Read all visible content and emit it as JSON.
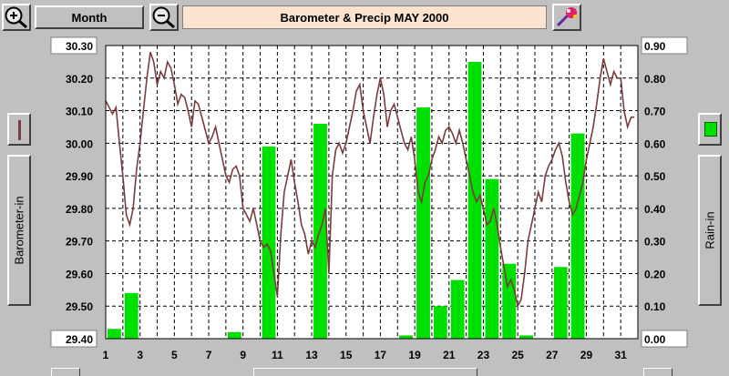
{
  "toolbar": {
    "zoom_in_label": "+",
    "zoom_out_label": "−",
    "period_button": "Month",
    "title": "Barometer & Precip  MAY 2000"
  },
  "legend": {
    "left_axis_label": "Barometer-in",
    "right_axis_label": "Rain-in",
    "barometer_color": "#7a3c3c",
    "rain_color": "#00e000"
  },
  "chart_data": {
    "type": "bar+line",
    "title": "Barometer & Precip  MAY 2000",
    "x_ticks": [
      "1",
      "3",
      "5",
      "7",
      "9",
      "11",
      "13",
      "15",
      "17",
      "19",
      "21",
      "23",
      "25",
      "27",
      "29",
      "31"
    ],
    "xlim": [
      1,
      32
    ],
    "left_axis": {
      "label": "Barometer-in",
      "ylim": [
        29.4,
        30.3
      ],
      "ticks": [
        "29.40",
        "29.50",
        "29.60",
        "29.70",
        "29.80",
        "29.90",
        "30.00",
        "30.10",
        "30.20",
        "30.30"
      ]
    },
    "right_axis": {
      "label": "Rain-in",
      "ylim": [
        0.0,
        0.9
      ],
      "ticks": [
        "0.00",
        "0.10",
        "0.20",
        "0.30",
        "0.40",
        "0.50",
        "0.60",
        "0.70",
        "0.80",
        "0.90"
      ]
    },
    "series": [
      {
        "name": "Barometer-in",
        "type": "line",
        "axis": "left",
        "color": "#7a3c3c",
        "points": [
          [
            1.0,
            30.13
          ],
          [
            1.2,
            30.11
          ],
          [
            1.4,
            30.09
          ],
          [
            1.6,
            30.11
          ],
          [
            1.8,
            30.0
          ],
          [
            2.0,
            29.9
          ],
          [
            2.2,
            29.78
          ],
          [
            2.4,
            29.75
          ],
          [
            2.6,
            29.8
          ],
          [
            2.8,
            29.92
          ],
          [
            3.0,
            30.0
          ],
          [
            3.2,
            30.1
          ],
          [
            3.4,
            30.2
          ],
          [
            3.6,
            30.28
          ],
          [
            3.8,
            30.25
          ],
          [
            4.0,
            30.18
          ],
          [
            4.2,
            30.22
          ],
          [
            4.4,
            30.2
          ],
          [
            4.6,
            30.25
          ],
          [
            4.8,
            30.23
          ],
          [
            5.0,
            30.18
          ],
          [
            5.2,
            30.12
          ],
          [
            5.4,
            30.15
          ],
          [
            5.6,
            30.14
          ],
          [
            5.8,
            30.1
          ],
          [
            6.0,
            30.05
          ],
          [
            6.2,
            30.13
          ],
          [
            6.4,
            30.12
          ],
          [
            6.6,
            30.08
          ],
          [
            6.8,
            30.04
          ],
          [
            7.0,
            30.0
          ],
          [
            7.2,
            30.02
          ],
          [
            7.4,
            30.05
          ],
          [
            7.6,
            30.0
          ],
          [
            7.8,
            29.95
          ],
          [
            8.0,
            29.9
          ],
          [
            8.2,
            29.88
          ],
          [
            8.4,
            29.92
          ],
          [
            8.6,
            29.93
          ],
          [
            8.8,
            29.9
          ],
          [
            9.0,
            29.8
          ],
          [
            9.2,
            29.78
          ],
          [
            9.4,
            29.76
          ],
          [
            9.6,
            29.8
          ],
          [
            9.8,
            29.75
          ],
          [
            10.0,
            29.7
          ],
          [
            10.2,
            29.68
          ],
          [
            10.4,
            29.69
          ],
          [
            10.6,
            29.67
          ],
          [
            10.8,
            29.6
          ],
          [
            11.0,
            29.53
          ],
          [
            11.2,
            29.72
          ],
          [
            11.4,
            29.85
          ],
          [
            11.6,
            29.9
          ],
          [
            11.8,
            29.95
          ],
          [
            12.0,
            29.88
          ],
          [
            12.2,
            29.82
          ],
          [
            12.4,
            29.75
          ],
          [
            12.6,
            29.72
          ],
          [
            12.8,
            29.66
          ],
          [
            13.0,
            29.7
          ],
          [
            13.2,
            29.68
          ],
          [
            13.4,
            29.72
          ],
          [
            13.6,
            29.75
          ],
          [
            13.8,
            29.8
          ],
          [
            14.0,
            29.6
          ],
          [
            14.2,
            29.9
          ],
          [
            14.4,
            29.98
          ],
          [
            14.6,
            30.0
          ],
          [
            14.8,
            29.97
          ],
          [
            15.0,
            30.0
          ],
          [
            15.2,
            30.05
          ],
          [
            15.4,
            30.1
          ],
          [
            15.6,
            30.16
          ],
          [
            15.8,
            30.18
          ],
          [
            16.0,
            30.1
          ],
          [
            16.2,
            30.05
          ],
          [
            16.4,
            30.0
          ],
          [
            16.6,
            30.08
          ],
          [
            16.8,
            30.15
          ],
          [
            17.0,
            30.2
          ],
          [
            17.2,
            30.15
          ],
          [
            17.4,
            30.05
          ],
          [
            17.6,
            30.1
          ],
          [
            17.8,
            30.12
          ],
          [
            18.0,
            30.08
          ],
          [
            18.2,
            30.04
          ],
          [
            18.4,
            30.0
          ],
          [
            18.6,
            29.98
          ],
          [
            18.8,
            30.02
          ],
          [
            19.0,
            29.95
          ],
          [
            19.2,
            29.85
          ],
          [
            19.4,
            29.82
          ],
          [
            19.6,
            29.88
          ],
          [
            19.8,
            29.9
          ],
          [
            20.0,
            29.95
          ],
          [
            20.2,
            29.98
          ],
          [
            20.4,
            30.02
          ],
          [
            20.6,
            30.0
          ],
          [
            20.8,
            30.04
          ],
          [
            21.0,
            30.05
          ],
          [
            21.2,
            30.03
          ],
          [
            21.4,
            30.0
          ],
          [
            21.6,
            30.04
          ],
          [
            21.8,
            30.0
          ],
          [
            22.0,
            29.95
          ],
          [
            22.2,
            29.9
          ],
          [
            22.4,
            29.85
          ],
          [
            22.6,
            29.82
          ],
          [
            22.8,
            29.84
          ],
          [
            23.0,
            29.8
          ],
          [
            23.2,
            29.75
          ],
          [
            23.4,
            29.76
          ],
          [
            23.6,
            29.8
          ],
          [
            23.8,
            29.75
          ],
          [
            24.0,
            29.68
          ],
          [
            24.2,
            29.62
          ],
          [
            24.4,
            29.56
          ],
          [
            24.6,
            29.58
          ],
          [
            24.8,
            29.55
          ],
          [
            25.0,
            29.5
          ],
          [
            25.2,
            29.52
          ],
          [
            25.4,
            29.6
          ],
          [
            25.6,
            29.7
          ],
          [
            25.8,
            29.75
          ],
          [
            26.0,
            29.8
          ],
          [
            26.2,
            29.85
          ],
          [
            26.4,
            29.82
          ],
          [
            26.6,
            29.9
          ],
          [
            26.8,
            29.93
          ],
          [
            27.0,
            29.95
          ],
          [
            27.2,
            29.98
          ],
          [
            27.4,
            30.0
          ],
          [
            27.6,
            29.96
          ],
          [
            27.8,
            29.88
          ],
          [
            28.0,
            29.82
          ],
          [
            28.2,
            29.78
          ],
          [
            28.4,
            29.8
          ],
          [
            28.6,
            29.84
          ],
          [
            28.8,
            29.88
          ],
          [
            29.0,
            29.95
          ],
          [
            29.2,
            30.0
          ],
          [
            29.4,
            30.05
          ],
          [
            29.6,
            30.12
          ],
          [
            29.8,
            30.2
          ],
          [
            30.0,
            30.26
          ],
          [
            30.2,
            30.22
          ],
          [
            30.4,
            30.18
          ],
          [
            30.6,
            30.22
          ],
          [
            30.8,
            30.2
          ],
          [
            31.0,
            30.2
          ],
          [
            31.2,
            30.1
          ],
          [
            31.4,
            30.05
          ],
          [
            31.6,
            30.08
          ],
          [
            31.8,
            30.08
          ]
        ]
      },
      {
        "name": "Rain-in",
        "type": "bar",
        "axis": "right",
        "color": "#00e000",
        "points": [
          [
            1,
            0.03
          ],
          [
            2,
            0.14
          ],
          [
            8,
            0.02
          ],
          [
            10,
            0.59
          ],
          [
            13,
            0.66
          ],
          [
            18,
            0.01
          ],
          [
            19,
            0.71
          ],
          [
            20,
            0.1
          ],
          [
            21,
            0.18
          ],
          [
            22,
            0.85
          ],
          [
            23,
            0.49
          ],
          [
            24,
            0.23
          ],
          [
            25,
            0.01
          ],
          [
            27,
            0.22
          ],
          [
            28,
            0.63
          ]
        ]
      }
    ],
    "grid": true
  }
}
